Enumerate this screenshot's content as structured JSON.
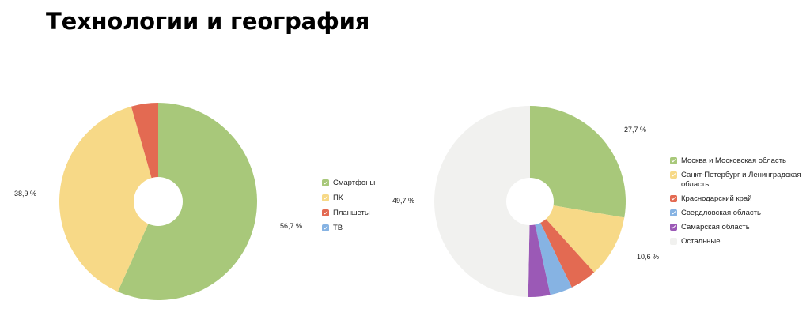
{
  "title": "Технологии и география",
  "chart_data": [
    {
      "type": "pie",
      "donut": true,
      "categories": [
        "Смартфоны",
        "ПК",
        "Планшеты",
        "ТВ"
      ],
      "values": [
        56.7,
        38.9,
        4.4,
        0
      ],
      "colors": [
        "#a8c87a",
        "#f7d987",
        "#e36a52",
        "#86b3e3"
      ],
      "data_labels": [
        "56,7 %",
        "38,9 %",
        "",
        ""
      ],
      "legend_position": "right"
    },
    {
      "type": "pie",
      "donut": true,
      "categories": [
        "Москва и Московская область",
        "Санкт-Петербург и Ленинградская область",
        "Краснодарский край",
        "Свердловская область",
        "Самарская область",
        "Остальные"
      ],
      "values": [
        27.7,
        10.6,
        4.5,
        3.8,
        3.7,
        49.7
      ],
      "colors": [
        "#a8c87a",
        "#f7d987",
        "#e36a52",
        "#86b3e3",
        "#9b59b6",
        "#f1f1ef"
      ],
      "data_labels": [
        "27,7 %",
        "10,6 %",
        "",
        "",
        "",
        "49,7 %"
      ],
      "legend_position": "right"
    }
  ]
}
